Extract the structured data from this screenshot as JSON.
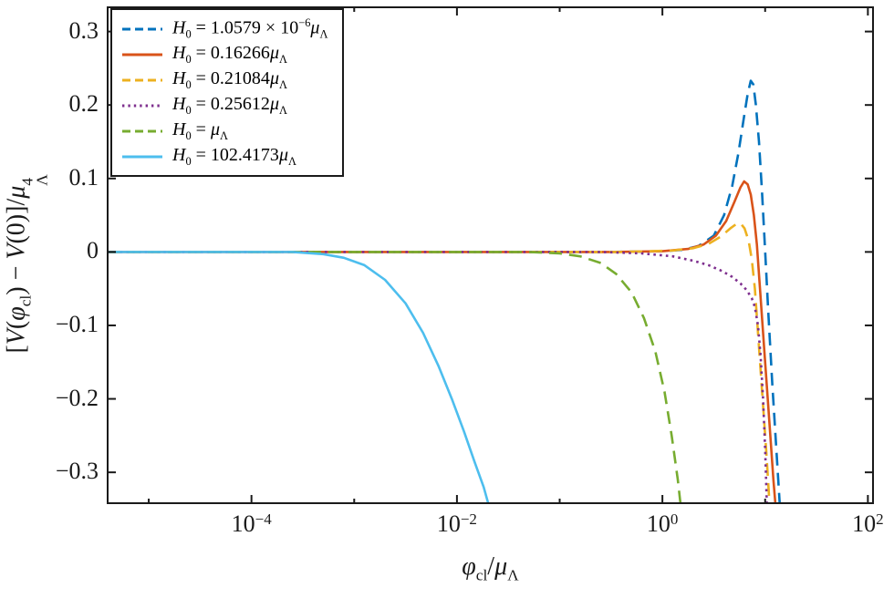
{
  "figure": {
    "background": "#ffffff",
    "axis_color": "#1a1a1a"
  },
  "chart_data": {
    "type": "line",
    "xscale": "log10",
    "grid": false,
    "legend_position": "top-left",
    "xlim_log10": [
      -5.4,
      2.05
    ],
    "ylim": [
      -0.342,
      0.333
    ],
    "xlabel_text": "φ_cl / μ_Λ",
    "ylabel_text": "[V(φ_cl) − V(0)] / μ_Λ^4",
    "xlabel_segments": [
      {
        "t": "φ",
        "i": true
      },
      {
        "t": "cl",
        "sub": true
      },
      {
        "t": "/"
      },
      {
        "t": "μ",
        "i": true
      },
      {
        "t": "Λ",
        "sub": true
      }
    ],
    "ylabel_segments": [
      {
        "t": "["
      },
      {
        "t": "V",
        "i": true
      },
      {
        "t": "("
      },
      {
        "t": "φ",
        "i": true
      },
      {
        "t": "cl",
        "sub": true
      },
      {
        "t": ") − "
      },
      {
        "t": "V",
        "i": true
      },
      {
        "t": "(0)]/"
      },
      {
        "t": "μ",
        "i": true
      },
      {
        "stack": true,
        "sup": "4",
        "sub": "Λ"
      }
    ],
    "xticks": [
      {
        "exp": -5,
        "show_label": false
      },
      {
        "exp": -4,
        "show_label": true
      },
      {
        "exp": -3,
        "show_label": false
      },
      {
        "exp": -2,
        "show_label": true
      },
      {
        "exp": -1,
        "show_label": false
      },
      {
        "exp": 0,
        "show_label": true
      },
      {
        "exp": 1,
        "show_label": false
      },
      {
        "exp": 2,
        "show_label": true
      }
    ],
    "yticks": [
      {
        "v": 0.3,
        "label": "0.3"
      },
      {
        "v": 0.2,
        "label": "0.2"
      },
      {
        "v": 0.1,
        "label": "0.1"
      },
      {
        "v": 0,
        "label": "0"
      },
      {
        "v": -0.1,
        "label": "−0.1"
      },
      {
        "v": -0.2,
        "label": "−0.2"
      },
      {
        "v": -0.3,
        "label": "−0.3"
      }
    ],
    "series": [
      {
        "label_text": "H_0 = 1.0579 × 10^−6 μ_Λ",
        "label_segments": [
          {
            "t": "H",
            "i": true
          },
          {
            "t": "0",
            "sub": true
          },
          {
            "t": " = 1.0579 × 10"
          },
          {
            "t": "−6",
            "sup": true
          },
          {
            "t": "μ",
            "i": true
          },
          {
            "t": "Λ",
            "sub": true
          }
        ],
        "color": "#0072BD",
        "style": "dashed",
        "points_log10x_y": [
          [
            -5.4,
            0
          ],
          [
            -0.5,
            0
          ],
          [
            0.0,
            0.001
          ],
          [
            0.2,
            0.003
          ],
          [
            0.35,
            0.008
          ],
          [
            0.5,
            0.022
          ],
          [
            0.6,
            0.05
          ],
          [
            0.68,
            0.09
          ],
          [
            0.74,
            0.135
          ],
          [
            0.79,
            0.18
          ],
          [
            0.83,
            0.215
          ],
          [
            0.86,
            0.233
          ],
          [
            0.885,
            0.228
          ],
          [
            0.91,
            0.2
          ],
          [
            0.94,
            0.15
          ],
          [
            0.97,
            0.08
          ],
          [
            1.0,
            0.0
          ],
          [
            1.03,
            -0.08
          ],
          [
            1.07,
            -0.18
          ],
          [
            1.11,
            -0.27
          ],
          [
            1.15,
            -0.36
          ]
        ]
      },
      {
        "label_text": "H_0 = 0.16266 μ_Λ",
        "label_segments": [
          {
            "t": "H",
            "i": true
          },
          {
            "t": "0",
            "sub": true
          },
          {
            "t": " = 0.16266"
          },
          {
            "t": "μ",
            "i": true
          },
          {
            "t": "Λ",
            "sub": true
          }
        ],
        "color": "#D95319",
        "style": "solid",
        "points_log10x_y": [
          [
            -5.4,
            0
          ],
          [
            -0.5,
            0
          ],
          [
            0.0,
            0.001
          ],
          [
            0.25,
            0.004
          ],
          [
            0.4,
            0.01
          ],
          [
            0.52,
            0.022
          ],
          [
            0.62,
            0.042
          ],
          [
            0.7,
            0.068
          ],
          [
            0.76,
            0.088
          ],
          [
            0.795,
            0.096
          ],
          [
            0.83,
            0.092
          ],
          [
            0.86,
            0.078
          ],
          [
            0.89,
            0.05
          ],
          [
            0.92,
            0.01
          ],
          [
            0.95,
            -0.05
          ],
          [
            0.99,
            -0.13
          ],
          [
            1.04,
            -0.23
          ],
          [
            1.08,
            -0.31
          ],
          [
            1.11,
            -0.36
          ]
        ]
      },
      {
        "label_text": "H_0 = 0.21084 μ_Λ",
        "label_segments": [
          {
            "t": "H",
            "i": true
          },
          {
            "t": "0",
            "sub": true
          },
          {
            "t": " = 0.21084"
          },
          {
            "t": "μ",
            "i": true
          },
          {
            "t": "Λ",
            "sub": true
          }
        ],
        "color": "#EDB120",
        "style": "dashed",
        "points_log10x_y": [
          [
            -5.4,
            0
          ],
          [
            -0.4,
            0
          ],
          [
            0.1,
            0.002
          ],
          [
            0.3,
            0.005
          ],
          [
            0.45,
            0.011
          ],
          [
            0.57,
            0.021
          ],
          [
            0.66,
            0.032
          ],
          [
            0.72,
            0.038
          ],
          [
            0.76,
            0.039
          ],
          [
            0.8,
            0.032
          ],
          [
            0.84,
            0.015
          ],
          [
            0.87,
            -0.01
          ],
          [
            0.9,
            -0.05
          ],
          [
            0.93,
            -0.11
          ],
          [
            0.97,
            -0.19
          ],
          [
            1.01,
            -0.27
          ],
          [
            1.05,
            -0.36
          ]
        ]
      },
      {
        "label_text": "H_0 = 0.25612 μ_Λ",
        "label_segments": [
          {
            "t": "H",
            "i": true
          },
          {
            "t": "0",
            "sub": true
          },
          {
            "t": " = 0.25612"
          },
          {
            "t": "μ",
            "i": true
          },
          {
            "t": "Λ",
            "sub": true
          }
        ],
        "color": "#7E2F8E",
        "style": "dotted",
        "points_log10x_y": [
          [
            -5.4,
            0
          ],
          [
            -0.6,
            0
          ],
          [
            -0.2,
            -0.002
          ],
          [
            0.1,
            -0.006
          ],
          [
            0.3,
            -0.012
          ],
          [
            0.45,
            -0.018
          ],
          [
            0.58,
            -0.026
          ],
          [
            0.68,
            -0.034
          ],
          [
            0.76,
            -0.043
          ],
          [
            0.82,
            -0.052
          ],
          [
            0.87,
            -0.063
          ],
          [
            0.9,
            -0.075
          ],
          [
            0.93,
            -0.1
          ],
          [
            0.955,
            -0.14
          ],
          [
            0.98,
            -0.2
          ],
          [
            1.0,
            -0.27
          ],
          [
            1.02,
            -0.36
          ]
        ]
      },
      {
        "label_text": "H_0 = μ_Λ",
        "label_segments": [
          {
            "t": "H",
            "i": true
          },
          {
            "t": "0",
            "sub": true
          },
          {
            "t": " = "
          },
          {
            "t": "μ",
            "i": true
          },
          {
            "t": "Λ",
            "sub": true
          }
        ],
        "color": "#77AC30",
        "style": "dashed",
        "points_log10x_y": [
          [
            -5.4,
            0
          ],
          [
            -1.3,
            0
          ],
          [
            -1.0,
            -0.002
          ],
          [
            -0.8,
            -0.006
          ],
          [
            -0.6,
            -0.015
          ],
          [
            -0.45,
            -0.03
          ],
          [
            -0.3,
            -0.055
          ],
          [
            -0.18,
            -0.09
          ],
          [
            -0.07,
            -0.135
          ],
          [
            0.02,
            -0.19
          ],
          [
            0.09,
            -0.25
          ],
          [
            0.15,
            -0.31
          ],
          [
            0.19,
            -0.36
          ]
        ]
      },
      {
        "label_text": "H_0 = 102.4173 μ_Λ",
        "label_segments": [
          {
            "t": "H",
            "i": true
          },
          {
            "t": "0",
            "sub": true
          },
          {
            "t": " = 102.4173"
          },
          {
            "t": "μ",
            "i": true
          },
          {
            "t": "Λ",
            "sub": true
          }
        ],
        "color": "#4DBEEE",
        "style": "solid",
        "points_log10x_y": [
          [
            -5.4,
            0
          ],
          [
            -3.6,
            0
          ],
          [
            -3.3,
            -0.003
          ],
          [
            -3.1,
            -0.008
          ],
          [
            -2.9,
            -0.018
          ],
          [
            -2.7,
            -0.038
          ],
          [
            -2.5,
            -0.07
          ],
          [
            -2.33,
            -0.11
          ],
          [
            -2.18,
            -0.155
          ],
          [
            -2.05,
            -0.2
          ],
          [
            -1.93,
            -0.245
          ],
          [
            -1.83,
            -0.285
          ],
          [
            -1.74,
            -0.32
          ],
          [
            -1.66,
            -0.36
          ]
        ]
      }
    ]
  }
}
